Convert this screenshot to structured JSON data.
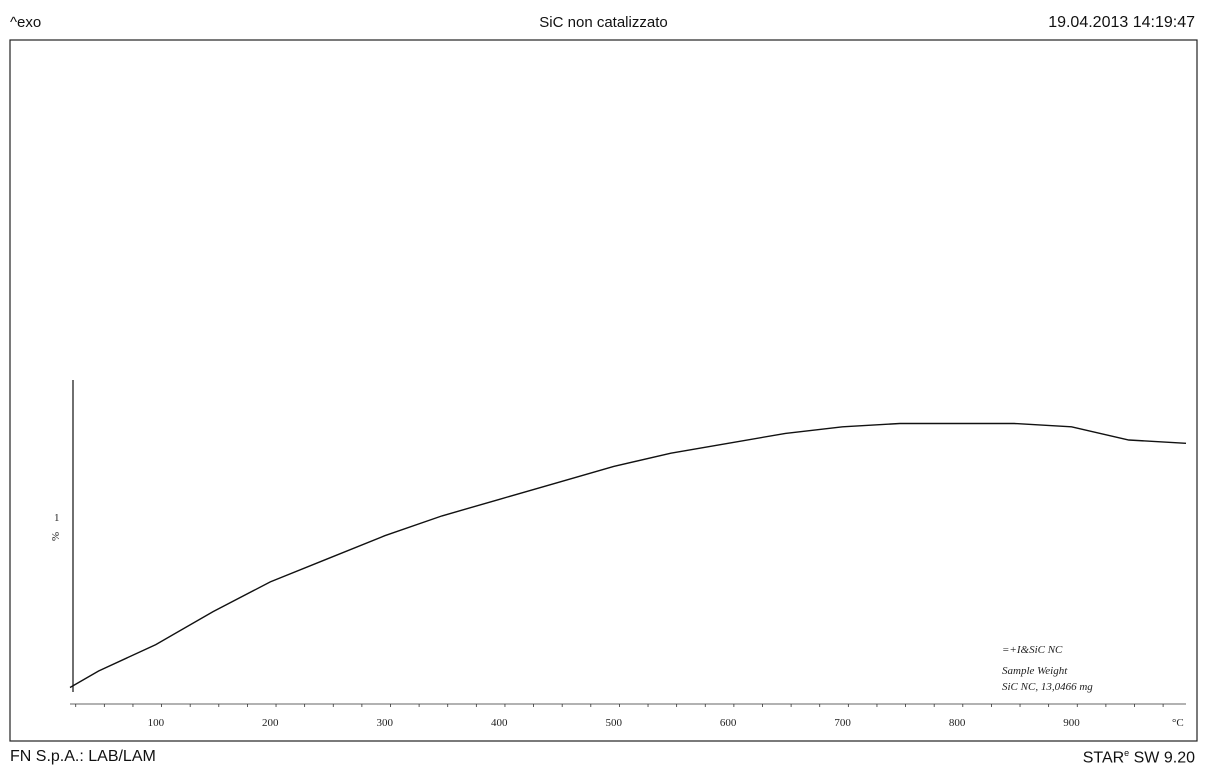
{
  "header": {
    "left": "^exo",
    "title": "SiC non catalizzato",
    "datetime": "19.04.2013 14:19:47"
  },
  "footer": {
    "left": "FN S.p.A.: LAB/LAM",
    "right_prefix": "STAR",
    "right_sup": "e",
    "right_suffix": " SW 9.20"
  },
  "chart_data": {
    "type": "line",
    "title": "SiC non catalizzato",
    "xlabel": "",
    "ylabel": "",
    "x_unit": "°C",
    "y_unit": "%",
    "y_scale_bar_value": "1",
    "x_ticks": [
      100,
      200,
      300,
      400,
      500,
      600,
      700,
      800,
      900
    ],
    "x_tick_labels": [
      "100",
      "200",
      "300",
      "400",
      "500",
      "600",
      "700",
      "800",
      "900"
    ],
    "xlim": [
      25,
      1000
    ],
    "ylim": [
      0,
      10
    ],
    "grid": false,
    "series": [
      {
        "name": "SiC NC",
        "x": [
          25,
          50,
          100,
          150,
          200,
          250,
          300,
          350,
          400,
          450,
          500,
          550,
          600,
          650,
          700,
          750,
          800,
          850,
          900,
          950,
          1000
        ],
        "y": [
          0.25,
          0.5,
          0.9,
          1.4,
          1.85,
          2.2,
          2.55,
          2.85,
          3.1,
          3.35,
          3.6,
          3.8,
          3.95,
          4.1,
          4.2,
          4.25,
          4.25,
          4.25,
          4.2,
          4.0,
          3.95
        ]
      }
    ],
    "legend": {
      "placement": "bottom-right",
      "lines": [
        "=+I&SiC NC",
        "Sample Weight",
        "SiC NC, 13,0466 mg"
      ]
    }
  }
}
